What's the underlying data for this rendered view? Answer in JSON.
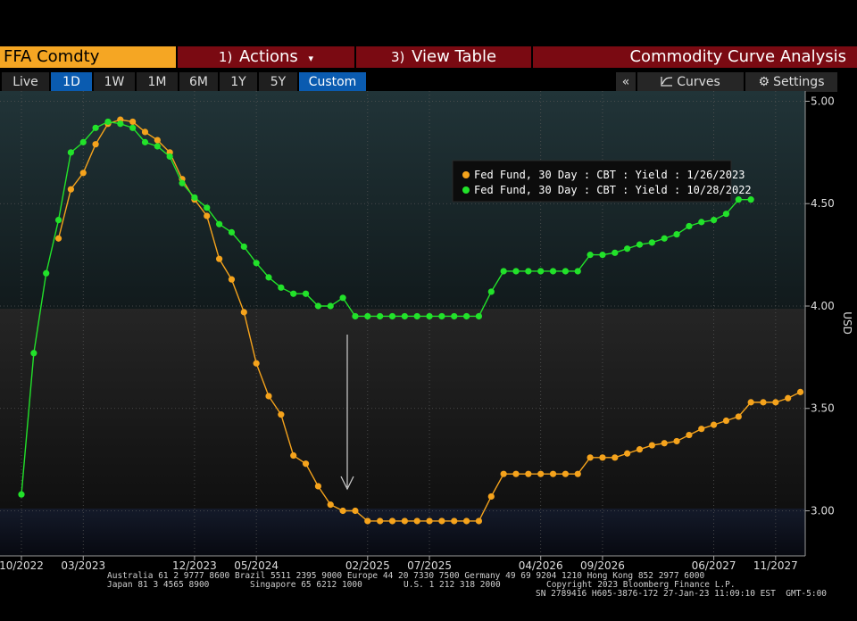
{
  "toolbar": {
    "security": "FFA Comdty",
    "actions_num": "1)",
    "actions_label": "Actions",
    "actions_caret": "▾",
    "view_num": "3)",
    "view_label": "View Table",
    "title": "Commodity Curve Analysis"
  },
  "tabs": [
    "Live",
    "1D",
    "1W",
    "1M",
    "6M",
    "1Y",
    "5Y",
    "Custom"
  ],
  "active_tabs": [
    "1D",
    "Custom"
  ],
  "right_tabs": {
    "collapse": "«",
    "curves": "Curves",
    "settings": "Settings"
  },
  "colors": {
    "orange": "#f5a31c",
    "green": "#22e22a",
    "accent_red": "#7a0a12",
    "accent_blue": "#0a5bb0"
  },
  "footer": {
    "line1": "Australia 61 2 9777 8600 Brazil 5511 2395 9000 Europe 44 20 7330 7500 Germany 49 69 9204 1210 Hong Kong 852 2977 6000",
    "line2a": "Japan 81 3 4565 8900",
    "line2b": "Singapore 65 6212 1000",
    "line2c": "U.S. 1 212 318 2000",
    "line2d": "Copyright 2023 Bloomberg Finance L.P.",
    "line3": "SN 2789416 H605-3876-172 27-Jan-23 11:09:10 EST  GMT-5:00"
  },
  "chart_data": {
    "type": "line",
    "ylabel": "USD",
    "ylim": [
      2.78,
      5.05
    ],
    "yticks": [
      "5.00",
      "4.50",
      "4.00",
      "3.50",
      "3.00"
    ],
    "ytick_values": [
      5.0,
      4.5,
      4.0,
      3.5,
      3.0
    ],
    "xticks": [
      "10/2022",
      "03/2023",
      "12/2023",
      "05/2024",
      "02/2025",
      "07/2025",
      "04/2026",
      "09/2026",
      "06/2027",
      "11/2027"
    ],
    "xtick_values": [
      "2022-10",
      "2023-03",
      "2023-12",
      "2024-05",
      "2025-02",
      "2025-07",
      "2026-04",
      "2026-09",
      "2027-06",
      "2027-11"
    ],
    "grid": true,
    "legend_position": "top-right",
    "series": [
      {
        "name": "Fed Fund, 30 Day : CBT : Yield : 1/26/2023",
        "color": "#f5a31c",
        "points": [
          [
            "2023-01",
            4.33
          ],
          [
            "2023-02",
            4.57
          ],
          [
            "2023-03",
            4.65
          ],
          [
            "2023-04",
            4.79
          ],
          [
            "2023-05",
            4.89
          ],
          [
            "2023-06",
            4.91
          ],
          [
            "2023-07",
            4.9
          ],
          [
            "2023-08",
            4.85
          ],
          [
            "2023-09",
            4.81
          ],
          [
            "2023-10",
            4.75
          ],
          [
            "2023-11",
            4.62
          ],
          [
            "2023-12",
            4.52
          ],
          [
            "2024-01",
            4.44
          ],
          [
            "2024-02",
            4.23
          ],
          [
            "2024-03",
            4.13
          ],
          [
            "2024-04",
            3.97
          ],
          [
            "2024-05",
            3.72
          ],
          [
            "2024-06",
            3.56
          ],
          [
            "2024-07",
            3.47
          ],
          [
            "2024-08",
            3.27
          ],
          [
            "2024-09",
            3.23
          ],
          [
            "2024-10",
            3.12
          ],
          [
            "2024-11",
            3.03
          ],
          [
            "2024-12",
            3.0
          ],
          [
            "2025-01",
            3.0
          ],
          [
            "2025-02",
            2.95
          ],
          [
            "2025-03",
            2.95
          ],
          [
            "2025-04",
            2.95
          ],
          [
            "2025-05",
            2.95
          ],
          [
            "2025-06",
            2.95
          ],
          [
            "2025-07",
            2.95
          ],
          [
            "2025-08",
            2.95
          ],
          [
            "2025-09",
            2.95
          ],
          [
            "2025-10",
            2.95
          ],
          [
            "2025-11",
            2.95
          ],
          [
            "2025-12",
            3.07
          ],
          [
            "2026-01",
            3.18
          ],
          [
            "2026-02",
            3.18
          ],
          [
            "2026-03",
            3.18
          ],
          [
            "2026-04",
            3.18
          ],
          [
            "2026-05",
            3.18
          ],
          [
            "2026-06",
            3.18
          ],
          [
            "2026-07",
            3.18
          ],
          [
            "2026-08",
            3.26
          ],
          [
            "2026-09",
            3.26
          ],
          [
            "2026-10",
            3.26
          ],
          [
            "2026-11",
            3.28
          ],
          [
            "2026-12",
            3.3
          ],
          [
            "2027-01",
            3.32
          ],
          [
            "2027-02",
            3.33
          ],
          [
            "2027-03",
            3.34
          ],
          [
            "2027-04",
            3.37
          ],
          [
            "2027-05",
            3.4
          ],
          [
            "2027-06",
            3.42
          ],
          [
            "2027-07",
            3.44
          ],
          [
            "2027-08",
            3.46
          ],
          [
            "2027-09",
            3.53
          ],
          [
            "2027-10",
            3.53
          ],
          [
            "2027-11",
            3.53
          ],
          [
            "2027-12",
            3.55
          ],
          [
            "2028-01",
            3.58
          ]
        ]
      },
      {
        "name": "Fed Fund, 30 Day : CBT : Yield : 10/28/2022",
        "color": "#22e22a",
        "points": [
          [
            "2022-10",
            3.08
          ],
          [
            "2022-11",
            3.77
          ],
          [
            "2022-12",
            4.16
          ],
          [
            "2023-01",
            4.42
          ],
          [
            "2023-02",
            4.75
          ],
          [
            "2023-03",
            4.8
          ],
          [
            "2023-04",
            4.87
          ],
          [
            "2023-05",
            4.9
          ],
          [
            "2023-06",
            4.89
          ],
          [
            "2023-07",
            4.87
          ],
          [
            "2023-08",
            4.8
          ],
          [
            "2023-09",
            4.78
          ],
          [
            "2023-10",
            4.73
          ],
          [
            "2023-11",
            4.6
          ],
          [
            "2023-12",
            4.53
          ],
          [
            "2024-01",
            4.48
          ],
          [
            "2024-02",
            4.4
          ],
          [
            "2024-03",
            4.36
          ],
          [
            "2024-04",
            4.29
          ],
          [
            "2024-05",
            4.21
          ],
          [
            "2024-06",
            4.14
          ],
          [
            "2024-07",
            4.09
          ],
          [
            "2024-08",
            4.06
          ],
          [
            "2024-09",
            4.06
          ],
          [
            "2024-10",
            4.0
          ],
          [
            "2024-11",
            4.0
          ],
          [
            "2024-12",
            4.04
          ],
          [
            "2025-01",
            3.95
          ],
          [
            "2025-02",
            3.95
          ],
          [
            "2025-03",
            3.95
          ],
          [
            "2025-04",
            3.95
          ],
          [
            "2025-05",
            3.95
          ],
          [
            "2025-06",
            3.95
          ],
          [
            "2025-07",
            3.95
          ],
          [
            "2025-08",
            3.95
          ],
          [
            "2025-09",
            3.95
          ],
          [
            "2025-10",
            3.95
          ],
          [
            "2025-11",
            3.95
          ],
          [
            "2025-12",
            4.07
          ],
          [
            "2026-01",
            4.17
          ],
          [
            "2026-02",
            4.17
          ],
          [
            "2026-03",
            4.17
          ],
          [
            "2026-04",
            4.17
          ],
          [
            "2026-05",
            4.17
          ],
          [
            "2026-06",
            4.17
          ],
          [
            "2026-07",
            4.17
          ],
          [
            "2026-08",
            4.25
          ],
          [
            "2026-09",
            4.25
          ],
          [
            "2026-10",
            4.26
          ],
          [
            "2026-11",
            4.28
          ],
          [
            "2026-12",
            4.3
          ],
          [
            "2027-01",
            4.31
          ],
          [
            "2027-02",
            4.33
          ],
          [
            "2027-03",
            4.35
          ],
          [
            "2027-04",
            4.39
          ],
          [
            "2027-05",
            4.41
          ],
          [
            "2027-06",
            4.42
          ],
          [
            "2027-07",
            4.45
          ],
          [
            "2027-08",
            4.52
          ],
          [
            "2027-09",
            4.52
          ]
        ]
      }
    ]
  }
}
